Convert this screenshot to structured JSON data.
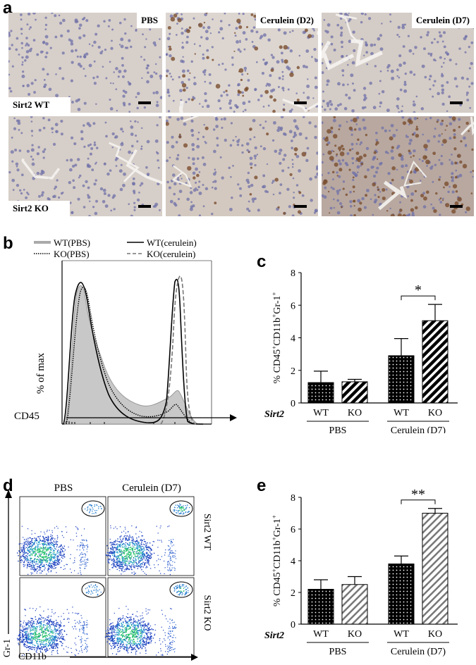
{
  "panel_a": {
    "label": "a",
    "columns": [
      "PBS",
      "Cerulein (D2)",
      "Cerulein (D7)"
    ],
    "rows": [
      "Sirt2 WT",
      "Sirt2 KO"
    ]
  },
  "panel_b": {
    "label": "b",
    "legend": [
      "WT(PBS)",
      "KO(PBS)",
      "WT(cerulein)",
      "KO(cerulein)"
    ],
    "ylabel": "% of max",
    "xlabel": "CD45"
  },
  "panel_d": {
    "label": "d",
    "columns": [
      "PBS",
      "Cerulein (D7)"
    ],
    "rows": [
      "Sirt2 WT",
      "Sirt2 KO"
    ],
    "ylabel": "Gr-1",
    "xlabel": "CD11b"
  },
  "colors": {
    "bar_fill": "#000000",
    "hist_fill": "#c8c8c8",
    "scatter_high": "#22c06a",
    "scatter_low": "#1a3fc0"
  },
  "chart_data": [
    {
      "panel": "c",
      "type": "bar",
      "gene_label": "Sirt2",
      "categories": [
        "WT",
        "KO",
        "WT",
        "KO"
      ],
      "groups": [
        "PBS",
        "Cerulein (D7)"
      ],
      "values": [
        1.25,
        1.3,
        2.9,
        5.05
      ],
      "errors": [
        0.7,
        0.15,
        1.05,
        1.0
      ],
      "ylabel": "% CD45+CD11b+Gr-1+",
      "ylim": [
        0,
        8
      ],
      "yticks": [
        "0",
        "2",
        "4",
        "6",
        "8"
      ],
      "significance": "*",
      "patterns": [
        "dots",
        "stripes",
        "dots",
        "stripes"
      ]
    },
    {
      "panel": "e",
      "type": "bar",
      "gene_label": "Sirt2",
      "categories": [
        "WT",
        "KO",
        "WT",
        "KO"
      ],
      "groups": [
        "PBS",
        "Cerulein (D7)"
      ],
      "values": [
        2.2,
        2.5,
        3.8,
        7.0
      ],
      "errors": [
        0.6,
        0.5,
        0.5,
        0.3
      ],
      "ylabel": "% CD45+CD11b+Gr-1+",
      "ylim": [
        0,
        8
      ],
      "yticks": [
        "0",
        "2",
        "4",
        "6",
        "8"
      ],
      "significance": "**",
      "patterns": [
        "dots",
        "stripes-light",
        "dots",
        "stripes-light"
      ]
    }
  ]
}
